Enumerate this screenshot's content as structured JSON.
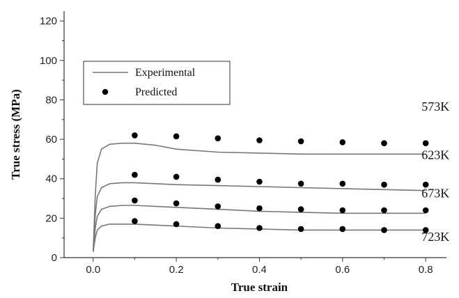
{
  "chart_data": {
    "type": "line",
    "xlabel": "True strain",
    "ylabel": "True stress (MPa)",
    "xlim": [
      -0.07,
      0.85
    ],
    "ylim": [
      0,
      125
    ],
    "xticks": [
      "0.0",
      "0.2",
      "0.4",
      "0.6",
      "0.8"
    ],
    "yticks": [
      "0",
      "20",
      "40",
      "60",
      "80",
      "100",
      "120"
    ],
    "legend": {
      "position": "upper-left",
      "entries": [
        {
          "label": "Experimental",
          "marker": "line"
        },
        {
          "label": "Predicted",
          "marker": "dot"
        }
      ]
    },
    "series": [
      {
        "name": "573K",
        "experimental": {
          "x": [
            0.0,
            0.005,
            0.01,
            0.02,
            0.04,
            0.07,
            0.1,
            0.15,
            0.2,
            0.3,
            0.4,
            0.5,
            0.6,
            0.7,
            0.8
          ],
          "y": [
            3,
            32,
            48,
            55,
            57.5,
            58,
            58,
            57,
            55,
            53.5,
            53,
            52.5,
            52.5,
            52.5,
            52.5
          ]
        },
        "predicted": {
          "x": [
            0.1,
            0.2,
            0.3,
            0.4,
            0.5,
            0.6,
            0.7,
            0.8
          ],
          "y": [
            62,
            61.5,
            60.5,
            59.5,
            59,
            58.5,
            58,
            58
          ]
        }
      },
      {
        "name": "623K",
        "experimental": {
          "x": [
            0.0,
            0.005,
            0.01,
            0.02,
            0.04,
            0.07,
            0.1,
            0.15,
            0.2,
            0.3,
            0.4,
            0.5,
            0.6,
            0.7,
            0.8
          ],
          "y": [
            3,
            22,
            31,
            35.5,
            37.5,
            38,
            38,
            37.5,
            37,
            36.5,
            36,
            35.5,
            35,
            34.5,
            34
          ]
        },
        "predicted": {
          "x": [
            0.1,
            0.2,
            0.3,
            0.4,
            0.5,
            0.6,
            0.7,
            0.8
          ],
          "y": [
            42,
            41,
            39.5,
            38.5,
            37.5,
            37.5,
            37,
            37
          ]
        }
      },
      {
        "name": "673K",
        "experimental": {
          "x": [
            0.0,
            0.005,
            0.01,
            0.02,
            0.04,
            0.07,
            0.1,
            0.15,
            0.2,
            0.3,
            0.4,
            0.5,
            0.6,
            0.7,
            0.8
          ],
          "y": [
            3,
            15,
            21,
            24.5,
            26,
            26.5,
            26.5,
            26,
            25.5,
            24.5,
            23.5,
            23,
            22.5,
            22.5,
            22.5
          ]
        },
        "predicted": {
          "x": [
            0.1,
            0.2,
            0.3,
            0.4,
            0.5,
            0.6,
            0.7,
            0.8
          ],
          "y": [
            29,
            27.5,
            26,
            25,
            24.5,
            24,
            24,
            24
          ]
        }
      },
      {
        "name": "723K",
        "experimental": {
          "x": [
            0.0,
            0.005,
            0.01,
            0.02,
            0.04,
            0.07,
            0.1,
            0.15,
            0.2,
            0.3,
            0.4,
            0.5,
            0.6,
            0.7,
            0.8
          ],
          "y": [
            3,
            10,
            14,
            16,
            17,
            17,
            17,
            16.5,
            16,
            15,
            14.5,
            14,
            14,
            14,
            14
          ]
        },
        "predicted": {
          "x": [
            0.1,
            0.2,
            0.3,
            0.4,
            0.5,
            0.6,
            0.7,
            0.8
          ],
          "y": [
            18.5,
            17,
            16,
            15,
            14.5,
            14.5,
            14,
            14
          ]
        }
      }
    ],
    "annotations": [
      {
        "text": "573K",
        "x": 0.79,
        "y": 74.5
      },
      {
        "text": "623K",
        "x": 0.79,
        "y": 50
      },
      {
        "text": "673K",
        "x": 0.79,
        "y": 30.5
      },
      {
        "text": "723K",
        "x": 0.79,
        "y": 8.5
      }
    ],
    "colors": {
      "line": "#777777",
      "marker": "#000000",
      "axis": "#333333"
    }
  }
}
